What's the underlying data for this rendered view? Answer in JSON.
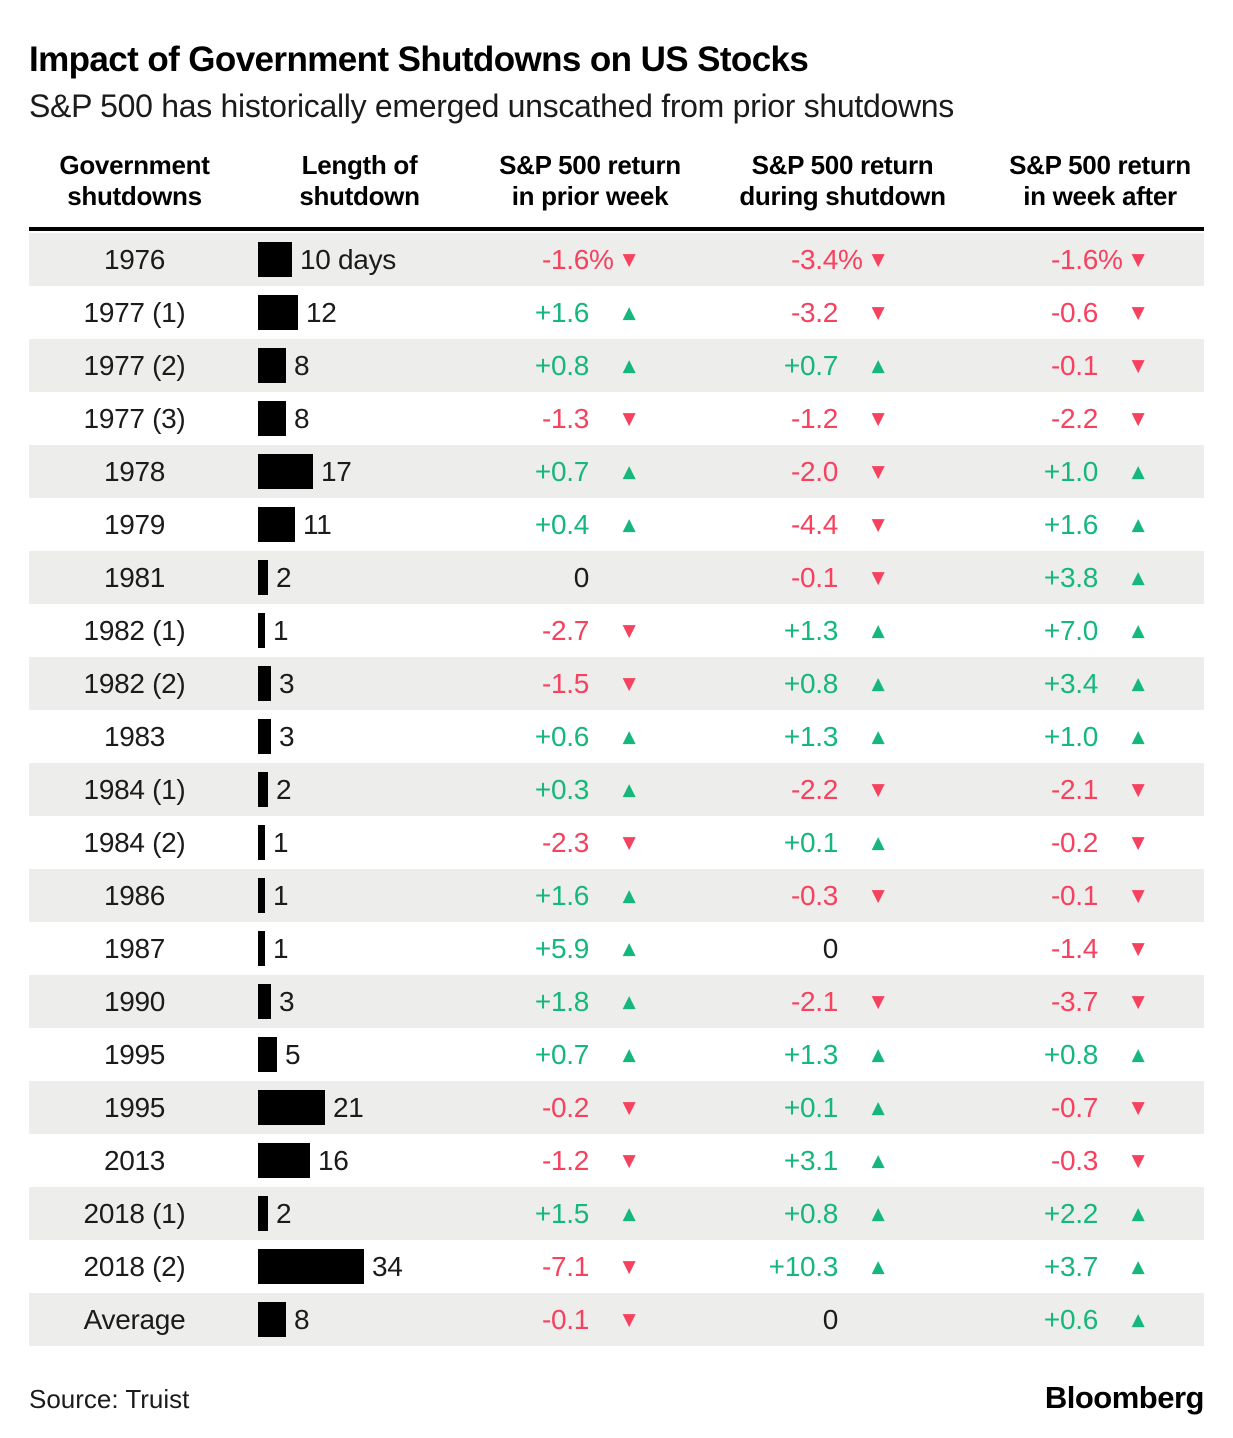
{
  "title": "Impact of Government Shutdowns on US Stocks",
  "subtitle": "S&P 500 has historically emerged unscathed from prior shutdowns",
  "source": "Source: Truist",
  "brand": "Bloomberg",
  "colors": {
    "up": "#16B77D",
    "down": "#F6415F",
    "bar": "#000000",
    "row_alt": "#EDEDEB"
  },
  "arrows": {
    "up": "▲",
    "down": "▼"
  },
  "header": {
    "col1": {
      "line1": "Government",
      "line2": "shutdowns"
    },
    "col2": {
      "line1": "Length of",
      "line2": "shutdown"
    },
    "col3": {
      "line1": "S&P 500 return",
      "line2": "in prior week"
    },
    "col4": {
      "line1": "S&P 500 return",
      "line2": "during shutdown"
    },
    "col5": {
      "line1": "S&P 500 return",
      "line2": "in week after"
    }
  },
  "chart_data": {
    "type": "table",
    "title": "Impact of Government Shutdowns on US Stocks",
    "columns": [
      "Government shutdowns",
      "Length of shutdown (days)",
      "S&P 500 return in prior week (%)",
      "S&P 500 return during shutdown (%)",
      "S&P 500 return in week after (%)"
    ],
    "rows": [
      {
        "year": "1976",
        "days": 10,
        "days_label": "10 days",
        "returns": [
          {
            "val": "-1.6",
            "pct": "%",
            "dir": "down"
          },
          {
            "val": "-3.4",
            "pct": "%",
            "dir": "down"
          },
          {
            "val": "-1.6",
            "pct": "%",
            "dir": "down"
          }
        ]
      },
      {
        "year": "1977 (1)",
        "days": 12,
        "days_label": "12",
        "returns": [
          {
            "val": "+1.6",
            "pct": "",
            "dir": "up"
          },
          {
            "val": "-3.2",
            "pct": "",
            "dir": "down"
          },
          {
            "val": "-0.6",
            "pct": "",
            "dir": "down"
          }
        ]
      },
      {
        "year": "1977 (2)",
        "days": 8,
        "days_label": "8",
        "returns": [
          {
            "val": "+0.8",
            "pct": "",
            "dir": "up"
          },
          {
            "val": "+0.7",
            "pct": "",
            "dir": "up"
          },
          {
            "val": "-0.1",
            "pct": "",
            "dir": "down"
          }
        ]
      },
      {
        "year": "1977 (3)",
        "days": 8,
        "days_label": "8",
        "returns": [
          {
            "val": "-1.3",
            "pct": "",
            "dir": "down"
          },
          {
            "val": "-1.2",
            "pct": "",
            "dir": "down"
          },
          {
            "val": "-2.2",
            "pct": "",
            "dir": "down"
          }
        ]
      },
      {
        "year": "1978",
        "days": 17,
        "days_label": "17",
        "returns": [
          {
            "val": "+0.7",
            "pct": "",
            "dir": "up"
          },
          {
            "val": "-2.0",
            "pct": "",
            "dir": "down"
          },
          {
            "val": "+1.0",
            "pct": "",
            "dir": "up"
          }
        ]
      },
      {
        "year": "1979",
        "days": 11,
        "days_label": "11",
        "returns": [
          {
            "val": "+0.4",
            "pct": "",
            "dir": "up"
          },
          {
            "val": "-4.4",
            "pct": "",
            "dir": "down"
          },
          {
            "val": "+1.6",
            "pct": "",
            "dir": "up"
          }
        ]
      },
      {
        "year": "1981",
        "days": 2,
        "days_label": "2",
        "returns": [
          {
            "val": "0",
            "pct": "",
            "dir": "none"
          },
          {
            "val": "-0.1",
            "pct": "",
            "dir": "down"
          },
          {
            "val": "+3.8",
            "pct": "",
            "dir": "up"
          }
        ]
      },
      {
        "year": "1982 (1)",
        "days": 1,
        "days_label": "1",
        "returns": [
          {
            "val": "-2.7",
            "pct": "",
            "dir": "down"
          },
          {
            "val": "+1.3",
            "pct": "",
            "dir": "up"
          },
          {
            "val": "+7.0",
            "pct": "",
            "dir": "up"
          }
        ]
      },
      {
        "year": "1982 (2)",
        "days": 3,
        "days_label": "3",
        "returns": [
          {
            "val": "-1.5",
            "pct": "",
            "dir": "down"
          },
          {
            "val": "+0.8",
            "pct": "",
            "dir": "up"
          },
          {
            "val": "+3.4",
            "pct": "",
            "dir": "up"
          }
        ]
      },
      {
        "year": "1983",
        "days": 3,
        "days_label": "3",
        "returns": [
          {
            "val": "+0.6",
            "pct": "",
            "dir": "up"
          },
          {
            "val": "+1.3",
            "pct": "",
            "dir": "up"
          },
          {
            "val": "+1.0",
            "pct": "",
            "dir": "up"
          }
        ]
      },
      {
        "year": "1984 (1)",
        "days": 2,
        "days_label": "2",
        "returns": [
          {
            "val": "+0.3",
            "pct": "",
            "dir": "up"
          },
          {
            "val": "-2.2",
            "pct": "",
            "dir": "down"
          },
          {
            "val": "-2.1",
            "pct": "",
            "dir": "down"
          }
        ]
      },
      {
        "year": "1984 (2)",
        "days": 1,
        "days_label": "1",
        "returns": [
          {
            "val": "-2.3",
            "pct": "",
            "dir": "down"
          },
          {
            "val": "+0.1",
            "pct": "",
            "dir": "up"
          },
          {
            "val": "-0.2",
            "pct": "",
            "dir": "down"
          }
        ]
      },
      {
        "year": "1986",
        "days": 1,
        "days_label": "1",
        "returns": [
          {
            "val": "+1.6",
            "pct": "",
            "dir": "up"
          },
          {
            "val": "-0.3",
            "pct": "",
            "dir": "down"
          },
          {
            "val": "-0.1",
            "pct": "",
            "dir": "down"
          }
        ]
      },
      {
        "year": "1987",
        "days": 1,
        "days_label": "1",
        "returns": [
          {
            "val": "+5.9",
            "pct": "",
            "dir": "up"
          },
          {
            "val": "0",
            "pct": "",
            "dir": "none"
          },
          {
            "val": "-1.4",
            "pct": "",
            "dir": "down"
          }
        ]
      },
      {
        "year": "1990",
        "days": 3,
        "days_label": "3",
        "returns": [
          {
            "val": "+1.8",
            "pct": "",
            "dir": "up"
          },
          {
            "val": "-2.1",
            "pct": "",
            "dir": "down"
          },
          {
            "val": "-3.7",
            "pct": "",
            "dir": "down"
          }
        ]
      },
      {
        "year": "1995",
        "days": 5,
        "days_label": "5",
        "returns": [
          {
            "val": "+0.7",
            "pct": "",
            "dir": "up"
          },
          {
            "val": "+1.3",
            "pct": "",
            "dir": "up"
          },
          {
            "val": "+0.8",
            "pct": "",
            "dir": "up"
          }
        ]
      },
      {
        "year": "1995",
        "days": 21,
        "days_label": "21",
        "returns": [
          {
            "val": "-0.2",
            "pct": "",
            "dir": "down"
          },
          {
            "val": "+0.1",
            "pct": "",
            "dir": "up"
          },
          {
            "val": "-0.7",
            "pct": "",
            "dir": "down"
          }
        ]
      },
      {
        "year": "2013",
        "days": 16,
        "days_label": "16",
        "returns": [
          {
            "val": "-1.2",
            "pct": "",
            "dir": "down"
          },
          {
            "val": "+3.1",
            "pct": "",
            "dir": "up"
          },
          {
            "val": "-0.3",
            "pct": "",
            "dir": "down"
          }
        ]
      },
      {
        "year": "2018 (1)",
        "days": 2,
        "days_label": "2",
        "returns": [
          {
            "val": "+1.5",
            "pct": "",
            "dir": "up"
          },
          {
            "val": "+0.8",
            "pct": "",
            "dir": "up"
          },
          {
            "val": "+2.2",
            "pct": "",
            "dir": "up"
          }
        ]
      },
      {
        "year": "2018 (2)",
        "days": 34,
        "days_label": "34",
        "returns": [
          {
            "val": "-7.1",
            "pct": "",
            "dir": "down"
          },
          {
            "val": "+10.3",
            "pct": "",
            "dir": "up"
          },
          {
            "val": "+3.7",
            "pct": "",
            "dir": "up"
          }
        ]
      },
      {
        "year": "Average",
        "days": 8,
        "days_label": "8",
        "returns": [
          {
            "val": "-0.1",
            "pct": "",
            "dir": "down"
          },
          {
            "val": "0",
            "pct": "",
            "dir": "none"
          },
          {
            "val": "+0.6",
            "pct": "",
            "dir": "up"
          }
        ]
      }
    ]
  }
}
